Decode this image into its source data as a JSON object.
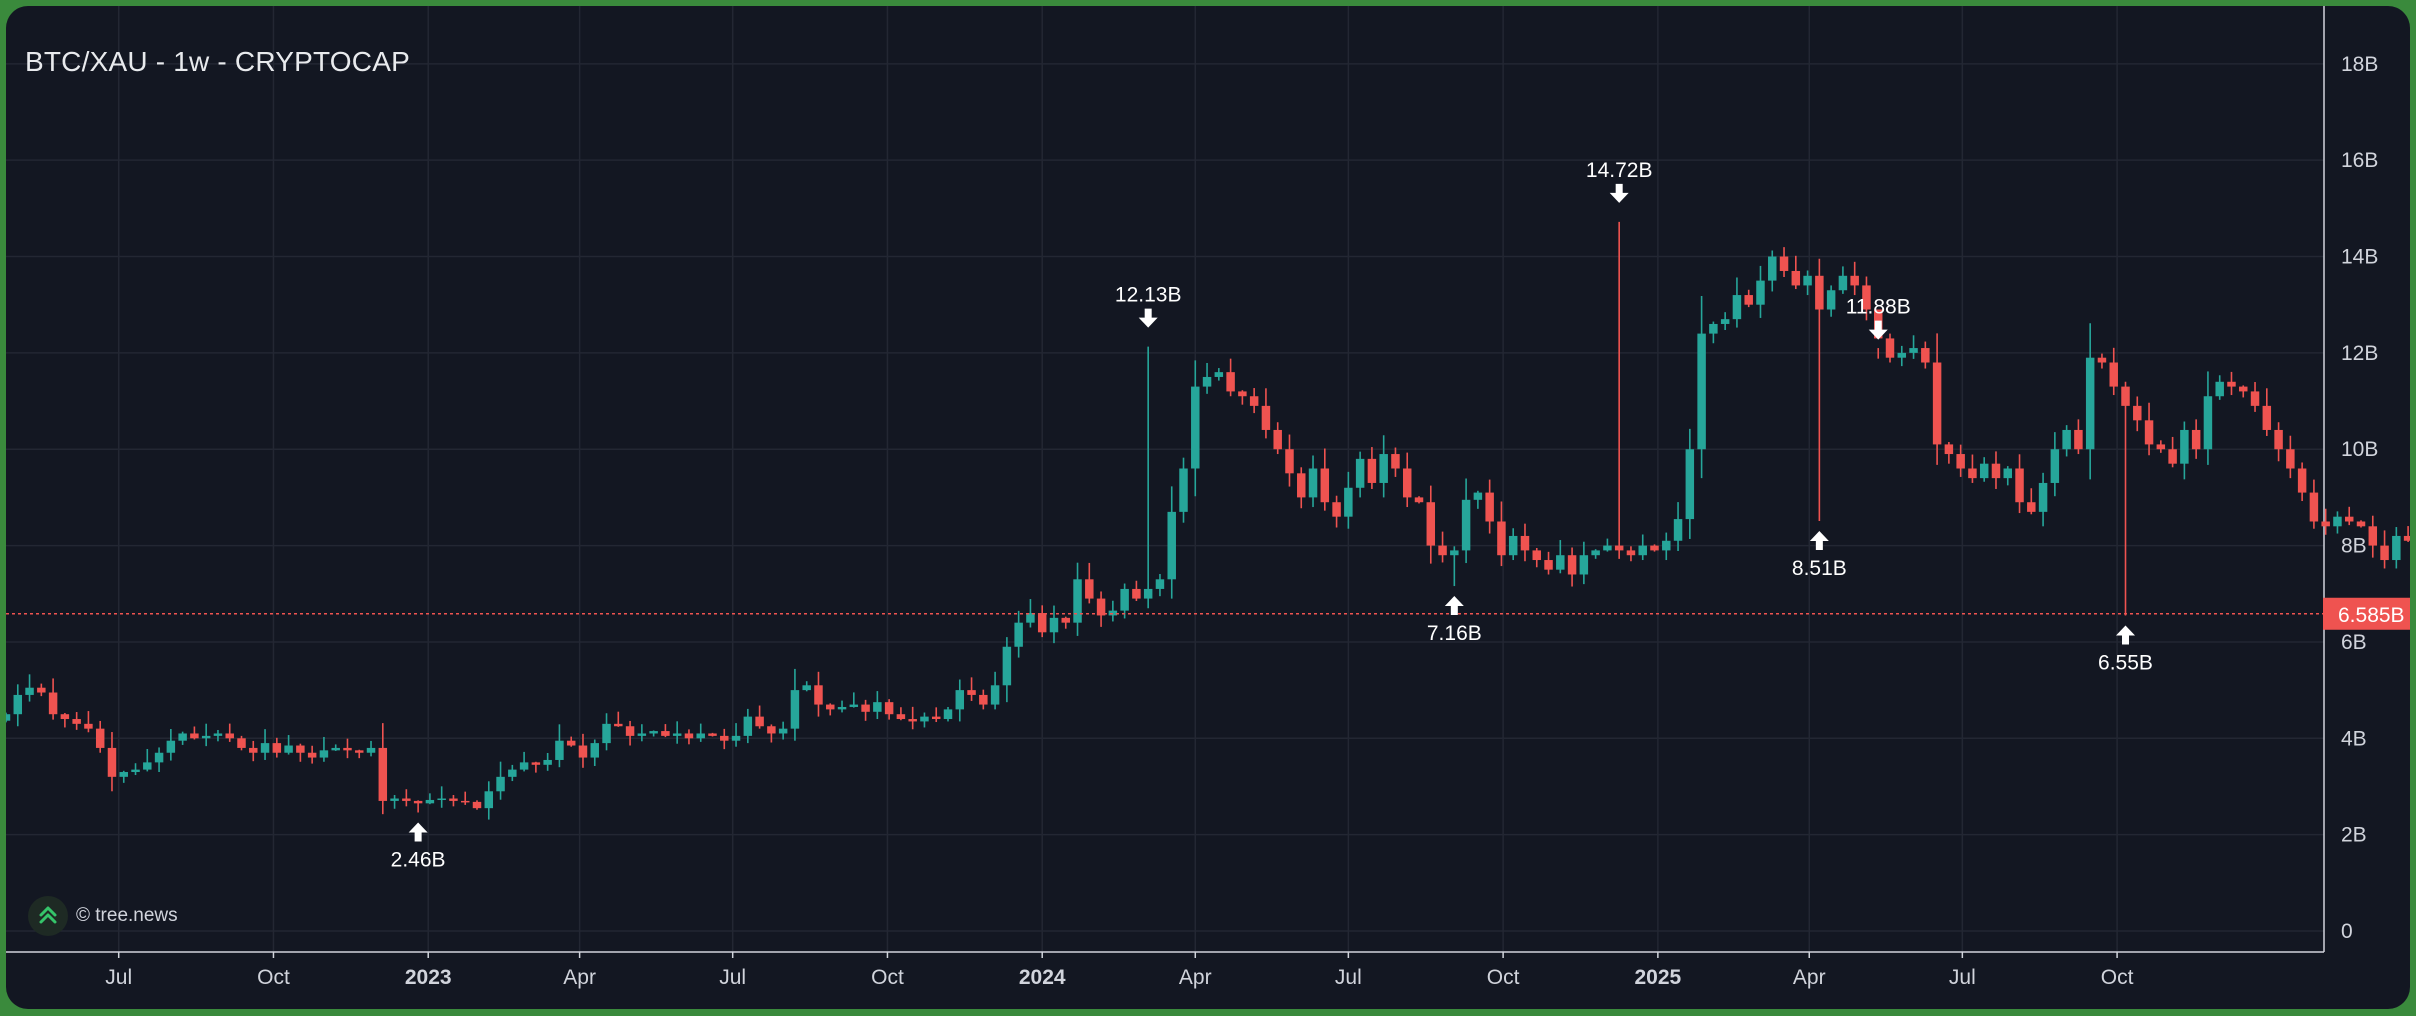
{
  "chart_data": {
    "type": "candlestick",
    "title": "BTC/XAU - 1w - CRYPTOCAP",
    "watermark": "© tree.news",
    "x_ticks": [
      {
        "date": "2022-07-01",
        "label": "Jul",
        "bold": false
      },
      {
        "date": "2022-10-01",
        "label": "Oct",
        "bold": false
      },
      {
        "date": "2023-01-01",
        "label": "2023",
        "bold": true
      },
      {
        "date": "2023-04-01",
        "label": "Apr",
        "bold": false
      },
      {
        "date": "2023-07-01",
        "label": "Jul",
        "bold": false
      },
      {
        "date": "2023-10-01",
        "label": "Oct",
        "bold": false
      },
      {
        "date": "2024-01-01",
        "label": "2024",
        "bold": true
      },
      {
        "date": "2024-04-01",
        "label": "Apr",
        "bold": false
      },
      {
        "date": "2024-07-01",
        "label": "Jul",
        "bold": false
      },
      {
        "date": "2024-10-01",
        "label": "Oct",
        "bold": false
      },
      {
        "date": "2025-01-01",
        "label": "2025",
        "bold": true
      },
      {
        "date": "2025-04-01",
        "label": "Apr",
        "bold": false
      },
      {
        "date": "2025-07-01",
        "label": "Jul",
        "bold": false
      },
      {
        "date": "2025-10-01",
        "label": "Oct",
        "bold": false
      }
    ],
    "y_ticks": [
      {
        "value": 0,
        "label": "0"
      },
      {
        "value": 2,
        "label": "2B"
      },
      {
        "value": 4,
        "label": "4B"
      },
      {
        "value": 6,
        "label": "6B"
      },
      {
        "value": 8,
        "label": "8B"
      },
      {
        "value": 10,
        "label": "10B"
      },
      {
        "value": 12,
        "label": "12B"
      },
      {
        "value": 14,
        "label": "14B"
      },
      {
        "value": 16,
        "label": "16B"
      },
      {
        "value": 18,
        "label": "18B"
      }
    ],
    "y_range": [
      0,
      19.2
    ],
    "x_range": [
      "2022-04-25",
      "2026-02-01"
    ],
    "last_price": {
      "value": 6.585,
      "label": "6.585B"
    },
    "colors": {
      "up": "#26a69a",
      "down": "#ef5350",
      "background": "#131722",
      "grid": "#232733",
      "text": "#d1d4dc",
      "price_line": "#ef5350"
    },
    "annotations": [
      {
        "date": "2022-12-26",
        "value": 2.46,
        "label": "2.46B",
        "direction": "low"
      },
      {
        "date": "2024-03-04",
        "value": 12.13,
        "label": "12.13B",
        "direction": "high"
      },
      {
        "date": "2024-09-02",
        "value": 7.16,
        "label": "7.16B",
        "direction": "low"
      },
      {
        "date": "2024-12-09",
        "value": 14.72,
        "label": "14.72B",
        "direction": "high"
      },
      {
        "date": "2025-04-07",
        "value": 8.51,
        "label": "8.51B",
        "direction": "low"
      },
      {
        "date": "2025-05-12",
        "value": 11.88,
        "label": "11.88B",
        "direction": "high"
      },
      {
        "date": "2025-10-06",
        "value": 6.55,
        "label": "6.55B",
        "direction": "low"
      }
    ],
    "start_date": "2022-04-25",
    "closes": [
      4.5,
      4.9,
      5.05,
      4.95,
      4.5,
      4.4,
      4.3,
      4.2,
      3.8,
      3.2,
      3.3,
      3.35,
      3.5,
      3.7,
      3.95,
      4.1,
      4.0,
      4.05,
      4.1,
      4.0,
      3.8,
      3.7,
      3.9,
      3.7,
      3.85,
      3.7,
      3.6,
      3.75,
      3.8,
      3.75,
      3.7,
      3.8,
      2.7,
      2.75,
      2.7,
      2.65,
      2.72,
      2.75,
      2.7,
      2.68,
      2.55,
      2.9,
      3.2,
      3.35,
      3.5,
      3.45,
      3.55,
      3.95,
      3.85,
      3.6,
      3.9,
      4.3,
      4.25,
      4.05,
      4.1,
      4.15,
      4.05,
      4.1,
      4.0,
      4.1,
      4.05,
      3.95,
      4.05,
      4.45,
      4.25,
      4.1,
      4.2,
      5.0,
      5.1,
      4.7,
      4.6,
      4.65,
      4.7,
      4.55,
      4.75,
      4.5,
      4.4,
      4.35,
      4.45,
      4.4,
      4.6,
      5.0,
      4.9,
      4.7,
      5.1,
      5.9,
      6.4,
      6.6,
      6.2,
      6.5,
      6.4,
      7.3,
      6.9,
      6.55,
      6.65,
      7.1,
      6.9,
      7.1,
      7.3,
      8.7,
      9.6,
      11.3,
      11.5,
      11.6,
      11.2,
      11.1,
      10.9,
      10.4,
      10.0,
      9.5,
      9.0,
      9.6,
      8.9,
      8.6,
      9.2,
      9.8,
      9.3,
      9.9,
      9.6,
      9.0,
      8.9,
      8.0,
      7.8,
      7.9,
      8.95,
      9.1,
      8.5,
      7.8,
      8.2,
      7.9,
      7.7,
      7.5,
      7.8,
      7.4,
      7.8,
      7.9,
      8.0,
      7.9,
      7.8,
      8.0,
      7.9,
      8.1,
      8.55,
      10.0,
      12.4,
      12.6,
      12.7,
      13.2,
      13.0,
      13.5,
      14.0,
      13.7,
      13.4,
      13.6,
      12.9,
      13.3,
      13.6,
      13.4,
      12.9,
      12.3,
      11.9,
      12.0,
      12.1,
      11.8,
      10.1,
      9.9,
      9.6,
      9.4,
      9.7,
      9.4,
      9.6,
      8.9,
      8.7,
      9.3,
      10.0,
      10.4,
      10.0,
      11.9,
      11.8,
      11.3,
      10.9,
      10.6,
      10.1,
      10.0,
      9.7,
      10.4,
      10.0,
      11.1,
      11.4,
      11.3,
      11.2,
      10.9,
      10.4,
      10.0,
      9.6,
      9.1,
      8.5,
      8.4,
      8.6,
      8.5,
      8.4,
      8.0,
      7.7,
      8.2,
      8.1,
      7.4,
      6.585
    ]
  }
}
